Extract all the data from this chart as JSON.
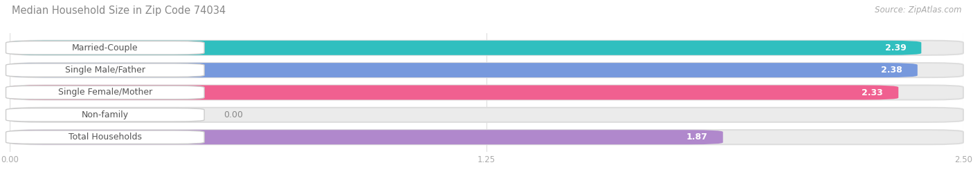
{
  "title": "Median Household Size in Zip Code 74034",
  "source": "Source: ZipAtlas.com",
  "categories": [
    "Married-Couple",
    "Single Male/Father",
    "Single Female/Mother",
    "Non-family",
    "Total Households"
  ],
  "values": [
    2.39,
    2.38,
    2.33,
    0.0,
    1.87
  ],
  "bar_colors": [
    "#30bfbf",
    "#7799dd",
    "#f06090",
    "#f5c891",
    "#b088cc"
  ],
  "bar_bg_colors": [
    "#ebebeb",
    "#ebebeb",
    "#ebebeb",
    "#ebebeb",
    "#ebebeb"
  ],
  "xlim": [
    0,
    2.5
  ],
  "xticks": [
    0.0,
    1.25,
    2.5
  ],
  "xtick_labels": [
    "0.00",
    "1.25",
    "2.50"
  ],
  "title_color": "#888888",
  "source_color": "#aaaaaa",
  "bg_color": "#ffffff",
  "bar_height": 0.65,
  "bar_gap": 0.35,
  "title_fontsize": 10.5,
  "source_fontsize": 8.5,
  "label_fontsize": 9,
  "value_fontsize": 9,
  "tick_fontsize": 8.5,
  "label_bg_color": "#ffffff",
  "label_text_color": "#555555",
  "value_text_color": "#ffffff",
  "nonfamily_value_color": "#888888",
  "grid_color": "#dddddd"
}
